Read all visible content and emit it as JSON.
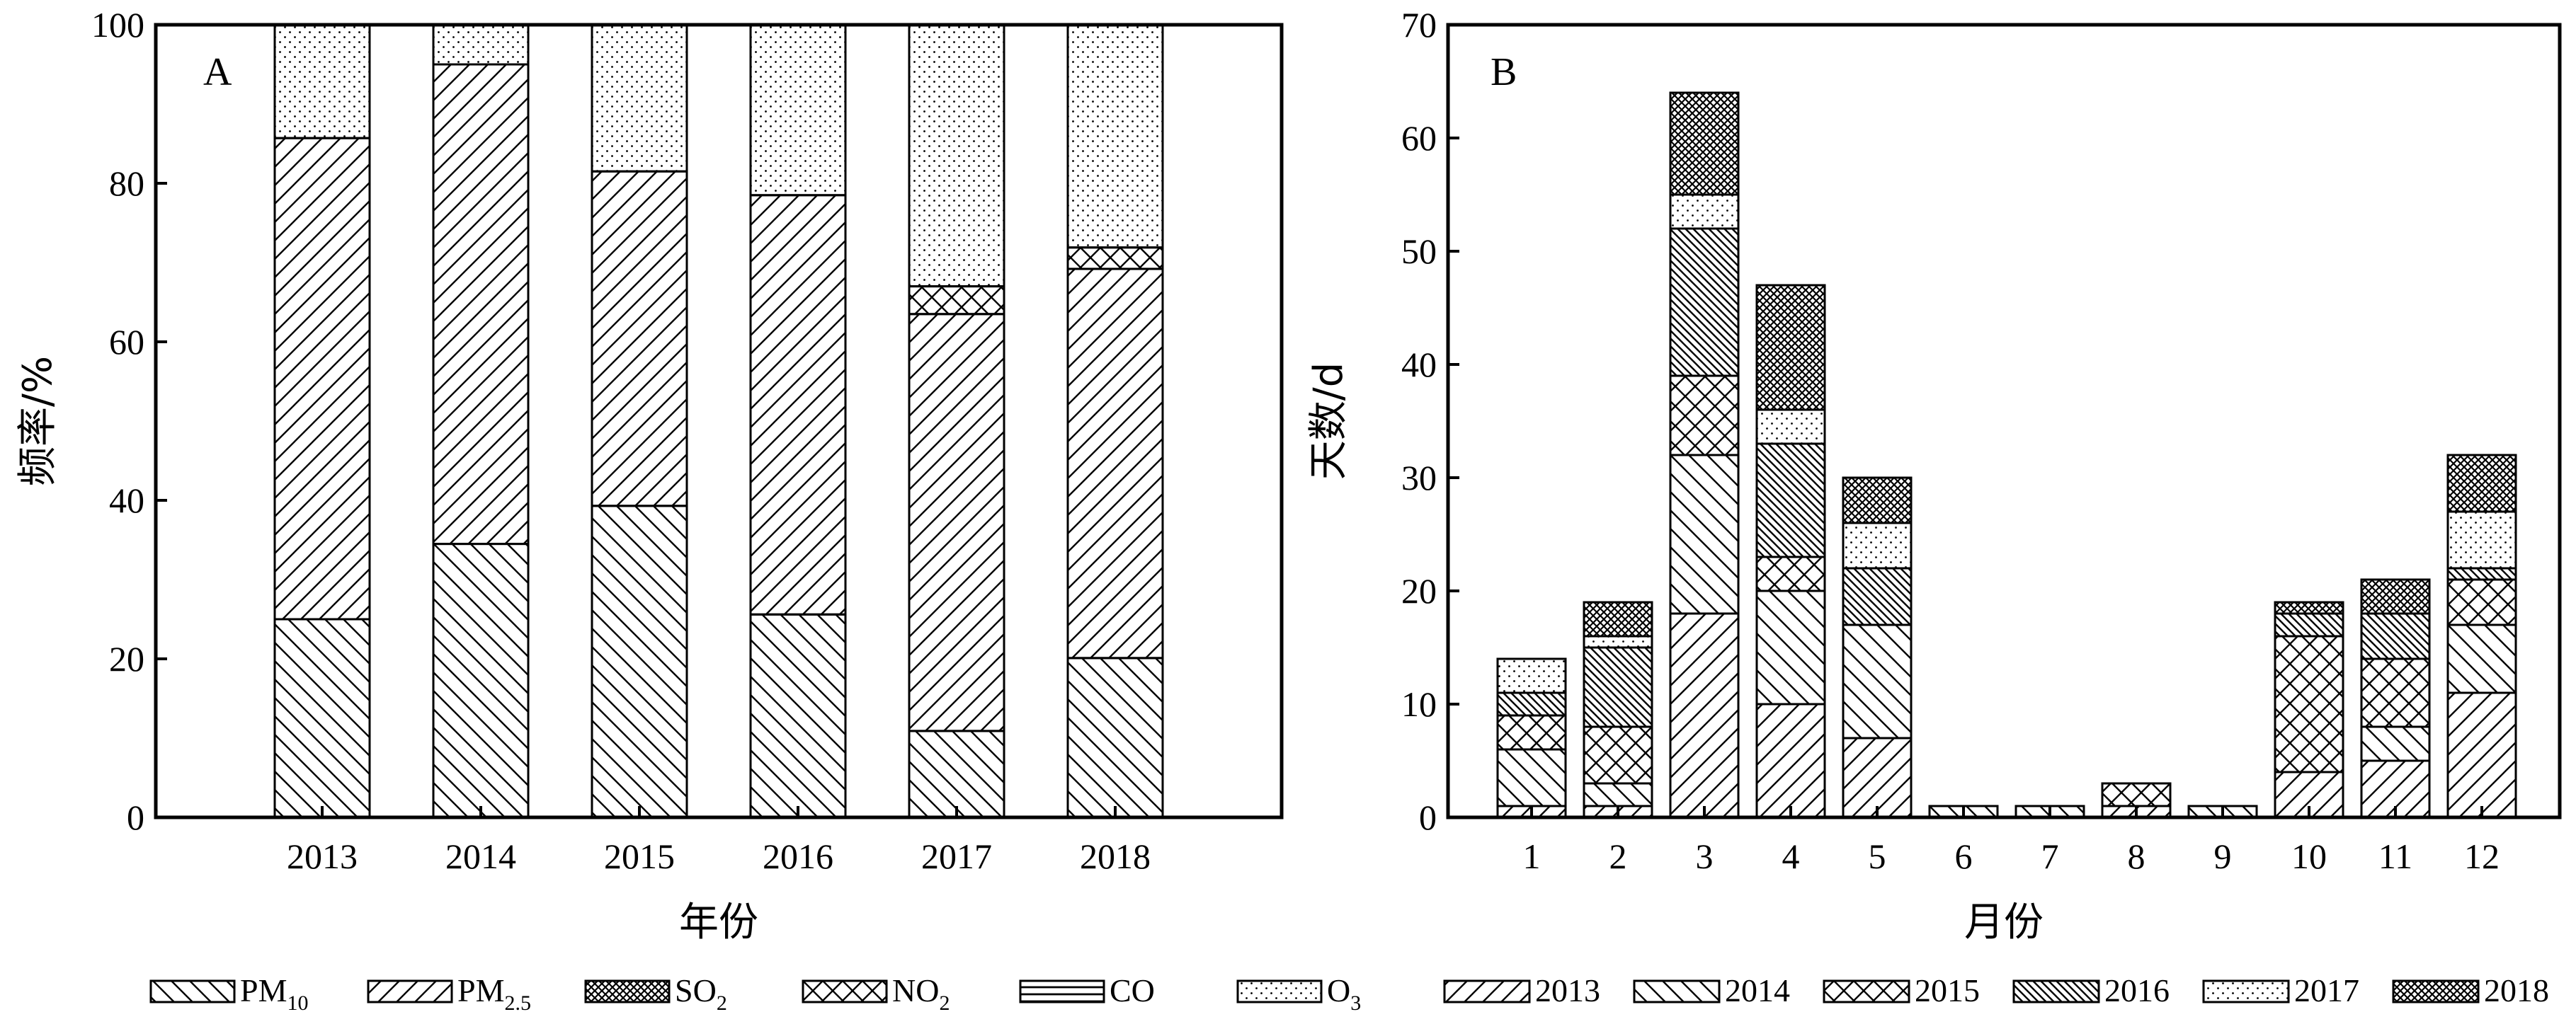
{
  "colors": {
    "ink": "#000000",
    "background": "#ffffff"
  },
  "panel_a": {
    "tag": "A",
    "chart_data": {
      "type": "bar",
      "stacked": true,
      "categories": [
        "2013",
        "2014",
        "2015",
        "2016",
        "2017",
        "2018"
      ],
      "series": [
        {
          "name": "PM10",
          "pattern": "back-diagonal",
          "values": [
            25,
            34.5,
            39.3,
            25.6,
            10.9,
            20.1
          ]
        },
        {
          "name": "PM2.5",
          "pattern": "forward-diagonal",
          "values": [
            60.7,
            60.5,
            42.2,
            52.9,
            52.6,
            49.1
          ]
        },
        {
          "name": "SO2",
          "pattern": "dense-crosshatch",
          "values": [
            0,
            0,
            0,
            0,
            0,
            0
          ]
        },
        {
          "name": "NO2",
          "pattern": "crosshatch",
          "values": [
            0,
            0,
            0,
            0,
            3.5,
            2.7
          ]
        },
        {
          "name": "CO",
          "pattern": "horizontal",
          "values": [
            0,
            0,
            0,
            0,
            0,
            0
          ]
        },
        {
          "name": "O3",
          "pattern": "dots",
          "values": [
            14.3,
            5,
            18.5,
            21.5,
            33,
            28.1
          ]
        }
      ],
      "ylim": [
        0,
        100
      ],
      "yticks": [
        "0",
        "20",
        "40",
        "60",
        "80",
        "100"
      ],
      "xlabel": "年份",
      "ylabel": "频率/%",
      "legend_placement": "bottom"
    },
    "legend": [
      {
        "base": "PM",
        "sub": "10"
      },
      {
        "base": "PM",
        "sub": "2.5"
      },
      {
        "base": "SO",
        "sub": "2"
      },
      {
        "base": "NO",
        "sub": "2"
      },
      {
        "base": "CO",
        "sub": ""
      },
      {
        "base": "O",
        "sub": "3"
      }
    ]
  },
  "panel_b": {
    "tag": "B",
    "chart_data": {
      "type": "bar",
      "stacked": true,
      "categories": [
        "1",
        "2",
        "3",
        "4",
        "5",
        "6",
        "7",
        "8",
        "9",
        "10",
        "11",
        "12"
      ],
      "series": [
        {
          "name": "2013",
          "pattern": "forward-diagonal",
          "values": [
            1,
            1,
            18,
            10,
            7,
            0,
            0,
            1,
            0,
            4,
            5,
            11
          ]
        },
        {
          "name": "2014",
          "pattern": "back-diagonal",
          "values": [
            5,
            2,
            14,
            10,
            10,
            1,
            1,
            0,
            1,
            0,
            3,
            6
          ]
        },
        {
          "name": "2015",
          "pattern": "crosshatch",
          "values": [
            3,
            5,
            7,
            3,
            0,
            0,
            0,
            2,
            0,
            12,
            6,
            4
          ]
        },
        {
          "name": "2016",
          "pattern": "dense-back-diagonal",
          "values": [
            2,
            7,
            13,
            10,
            5,
            0,
            0,
            0,
            0,
            2,
            4,
            1
          ]
        },
        {
          "name": "2017",
          "pattern": "dots",
          "values": [
            3,
            1,
            3,
            3,
            4,
            0,
            0,
            0,
            0,
            0,
            0,
            5
          ]
        },
        {
          "name": "2018",
          "pattern": "dense-crosshatch",
          "values": [
            0,
            3,
            9,
            11,
            4,
            0,
            0,
            0,
            0,
            1,
            3,
            5
          ]
        }
      ],
      "ylim": [
        0,
        70
      ],
      "yticks": [
        "0",
        "10",
        "20",
        "30",
        "40",
        "50",
        "60",
        "70"
      ],
      "xlabel": "月份",
      "ylabel": "天数/d",
      "legend_placement": "bottom"
    },
    "legend": [
      {
        "base": "2013",
        "sub": ""
      },
      {
        "base": "2014",
        "sub": ""
      },
      {
        "base": "2015",
        "sub": ""
      },
      {
        "base": "2016",
        "sub": ""
      },
      {
        "base": "2017",
        "sub": ""
      },
      {
        "base": "2018",
        "sub": ""
      }
    ]
  }
}
